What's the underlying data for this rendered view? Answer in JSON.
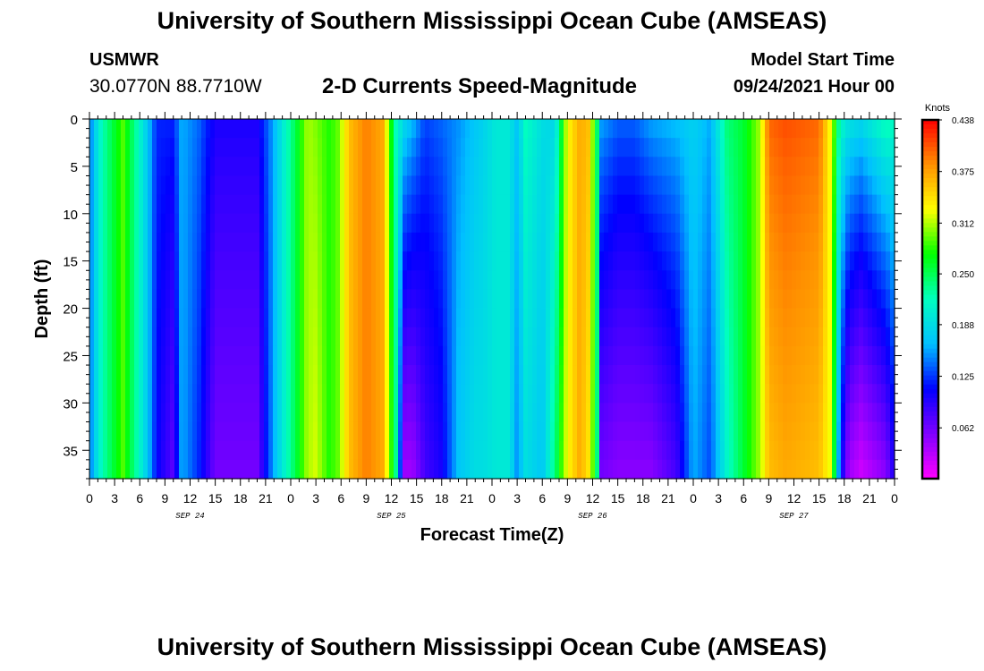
{
  "header": {
    "title": "University of Southern Mississippi Ocean Cube (AMSEAS)",
    "station_name": "USMWR",
    "station_coords": "30.0770N  88.7710W",
    "model_start_label": "Model Start Time",
    "model_start_value": "09/24/2021 Hour 00"
  },
  "footer": {
    "title": "University of Southern Mississippi Ocean Cube (AMSEAS)"
  },
  "colors": {
    "scale": [
      "#ff00ff",
      "#8000ff",
      "#0000ff",
      "#00c0ff",
      "#00ffc0",
      "#00ff00",
      "#ffff00",
      "#ff9000",
      "#ff0000"
    ]
  },
  "chart_data": {
    "type": "heatmap",
    "title": "2-D Currents Speed-Magnitude",
    "xlabel": "Forecast Time(Z)",
    "ylabel": "Depth (ft)",
    "x_hours": [
      0,
      96
    ],
    "ylim": [
      0,
      38
    ],
    "y_inverted": true,
    "y_ticks": [
      0,
      5,
      10,
      15,
      20,
      25,
      30,
      35
    ],
    "x_tick_labels": [
      "0",
      "3",
      "6",
      "9",
      "12",
      "15",
      "18",
      "21",
      "0",
      "3",
      "6",
      "9",
      "12",
      "15",
      "18",
      "21",
      "0",
      "3",
      "6",
      "9",
      "12",
      "15",
      "18",
      "21",
      "0",
      "3",
      "6",
      "9",
      "12",
      "15",
      "18",
      "21",
      "0"
    ],
    "day_labels": [
      {
        "text": "SEP 24",
        "hour": 12
      },
      {
        "text": "SEP 25",
        "hour": 36
      },
      {
        "text": "SEP 26",
        "hour": 60
      },
      {
        "text": "SEP 27",
        "hour": 84
      }
    ],
    "colorbar": {
      "units": "Knots",
      "ticks": [
        "0.438",
        "0.375",
        "0.312",
        "0.250",
        "0.188",
        "0.125",
        "0.062"
      ],
      "tick_values": [
        0.438,
        0.375,
        0.312,
        0.25,
        0.188,
        0.125,
        0.062
      ],
      "range": [
        0.0,
        0.438
      ]
    },
    "speed_profile": {
      "hours": [
        0,
        0.5,
        1.5,
        4,
        5.5,
        7,
        8,
        10,
        11,
        13,
        15,
        20,
        22,
        23,
        24.5,
        26,
        27,
        28.5,
        29.5,
        31,
        33,
        35,
        36.5,
        37.5,
        38.5,
        40,
        42,
        44,
        46,
        47,
        48.5,
        50,
        51,
        52,
        54,
        55.5,
        57,
        58.5,
        59.5,
        60.5,
        61,
        63,
        65,
        67,
        70,
        72,
        74,
        76,
        78,
        80,
        81,
        83,
        87,
        88.5,
        89.5,
        90.5,
        92,
        95,
        96
      ],
      "surface_knots": [
        0.14,
        0.17,
        0.22,
        0.29,
        0.23,
        0.17,
        0.12,
        0.12,
        0.16,
        0.14,
        0.1,
        0.1,
        0.16,
        0.2,
        0.25,
        0.31,
        0.3,
        0.28,
        0.29,
        0.36,
        0.39,
        0.37,
        0.22,
        0.19,
        0.17,
        0.13,
        0.14,
        0.15,
        0.17,
        0.18,
        0.2,
        0.2,
        0.17,
        0.22,
        0.19,
        0.18,
        0.33,
        0.37,
        0.36,
        0.25,
        0.16,
        0.14,
        0.14,
        0.16,
        0.17,
        0.18,
        0.16,
        0.24,
        0.26,
        0.31,
        0.4,
        0.41,
        0.4,
        0.32,
        0.22,
        0.2,
        0.19,
        0.23,
        0.22
      ],
      "bottom_knots": [
        0.14,
        0.17,
        0.22,
        0.29,
        0.23,
        0.17,
        0.11,
        0.07,
        0.16,
        0.12,
        0.06,
        0.06,
        0.16,
        0.2,
        0.25,
        0.31,
        0.32,
        0.28,
        0.29,
        0.36,
        0.39,
        0.37,
        0.24,
        0.04,
        0.04,
        0.08,
        0.1,
        0.17,
        0.19,
        0.19,
        0.2,
        0.2,
        0.15,
        0.19,
        0.17,
        0.24,
        0.33,
        0.37,
        0.34,
        0.25,
        0.06,
        0.05,
        0.05,
        0.05,
        0.08,
        0.16,
        0.13,
        0.21,
        0.26,
        0.31,
        0.36,
        0.37,
        0.36,
        0.32,
        0.12,
        0.04,
        0.02,
        0.05,
        0.1
      ]
    }
  }
}
